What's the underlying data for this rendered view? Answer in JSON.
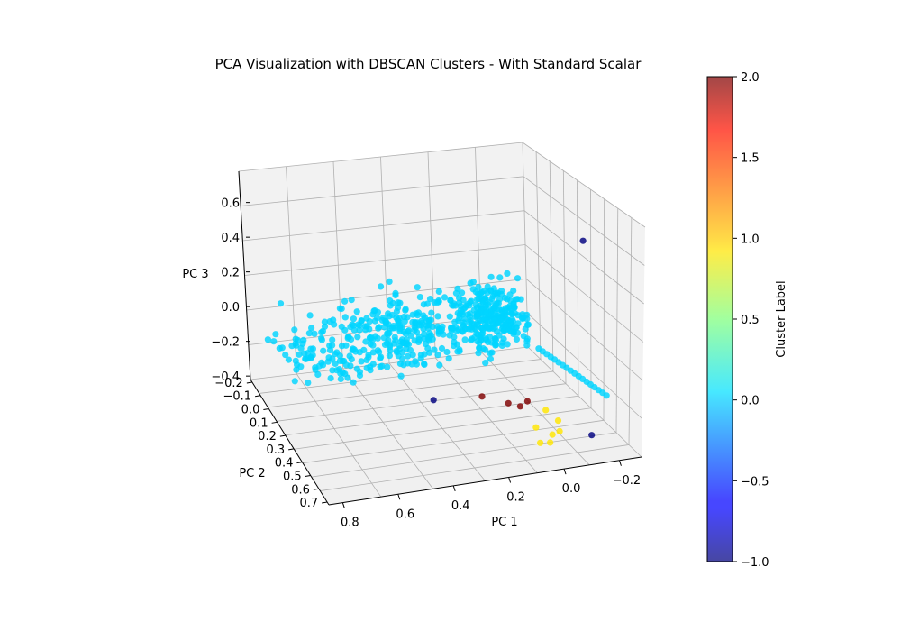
{
  "chart_data": {
    "type": "scatter",
    "projection": "3d",
    "title": "PCA Visualization with DBSCAN Clusters - With Standard Scalar",
    "xlabel": "PC 1",
    "ylabel": "PC 2",
    "zlabel": "PC 3",
    "x_ticks": [
      "0.8",
      "0.6",
      "0.4",
      "0.2",
      "0.0",
      "−0.2"
    ],
    "y_ticks": [
      "−0.2",
      "−0.1",
      "0.0",
      "0.1",
      "0.2",
      "0.3",
      "0.4",
      "0.5",
      "0.6",
      "0.7"
    ],
    "z_ticks": [
      "0.6",
      "0.4",
      "0.2",
      "0.0",
      "−0.2",
      "−0.4"
    ],
    "xlim": [
      -0.28,
      0.85
    ],
    "ylim": [
      -0.22,
      0.72
    ],
    "zlim": [
      -0.42,
      0.78
    ],
    "grid": true,
    "colormap": "jet",
    "colorbar": {
      "label": "Cluster Label",
      "range": [
        -1.0,
        2.0
      ],
      "ticks": [
        "2.0",
        "1.5",
        "1.0",
        "0.5",
        "0.0",
        "−0.5",
        "−1.0"
      ]
    },
    "clusters": [
      {
        "label": -1,
        "color": "#00007f",
        "points": [
          [
            -0.15,
            0.45,
            0.65
          ],
          [
            0.36,
            0.35,
            -0.22
          ],
          [
            -0.1,
            0.72,
            -0.25
          ]
        ]
      },
      {
        "label": 0,
        "color": "#00d4ff",
        "points": "dense cloud of several hundred points, values approximate"
      },
      {
        "label": 1,
        "color": "#ffe500",
        "points": [
          [
            0.0,
            0.5,
            -0.25
          ],
          [
            -0.03,
            0.55,
            -0.28
          ],
          [
            0.05,
            0.55,
            -0.3
          ],
          [
            0.0,
            0.58,
            -0.33
          ],
          [
            0.05,
            0.6,
            -0.35
          ],
          [
            0.02,
            0.62,
            -0.34
          ],
          [
            -0.02,
            0.6,
            -0.3
          ]
        ]
      },
      {
        "label": 2,
        "color": "#7f0000",
        "points": [
          [
            0.2,
            0.4,
            -0.2
          ],
          [
            0.12,
            0.45,
            -0.22
          ],
          [
            0.08,
            0.46,
            -0.24
          ],
          [
            0.06,
            0.48,
            -0.2
          ]
        ]
      }
    ]
  }
}
